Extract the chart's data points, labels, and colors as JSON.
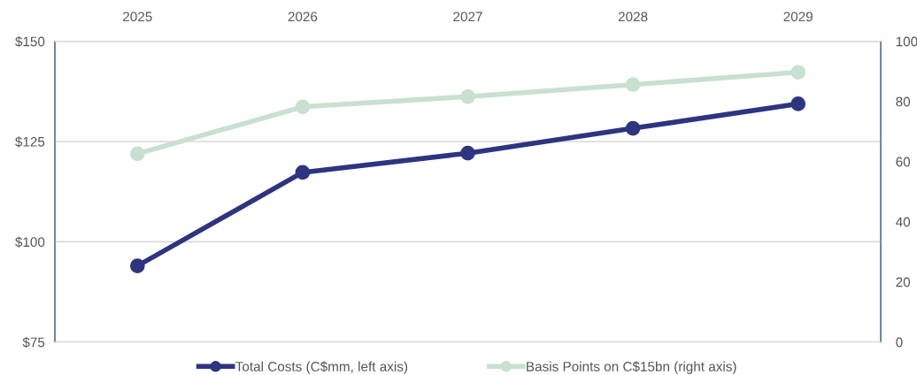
{
  "chart_data": {
    "type": "line",
    "categories": [
      "2025",
      "2026",
      "2027",
      "2028",
      "2029"
    ],
    "series": [
      {
        "name": "Total Costs (C$mm, left axis)",
        "color": "#2e3580",
        "values": [
          94,
          117.3,
          122.1,
          128.3,
          134.4
        ]
      },
      {
        "name": "Basis Points on C$15bn (right axis)",
        "color": "#c8e0d0",
        "values": [
          62.6,
          78.2,
          81.6,
          85.6,
          89.7
        ],
        "axis": "y2"
      }
    ],
    "ylim": [
      75,
      150
    ],
    "yticks": [
      {
        "value": 75,
        "label": "$75"
      },
      {
        "value": 100,
        "label": "$100"
      },
      {
        "value": 125,
        "label": "$125"
      },
      {
        "value": 150,
        "label": "$150"
      }
    ],
    "y2lim": [
      0,
      100
    ],
    "y2ticks": [
      0,
      20,
      40,
      60,
      80,
      100
    ],
    "grid": "y",
    "legend": "bottom",
    "marker": "circle",
    "line_style": "solid"
  }
}
